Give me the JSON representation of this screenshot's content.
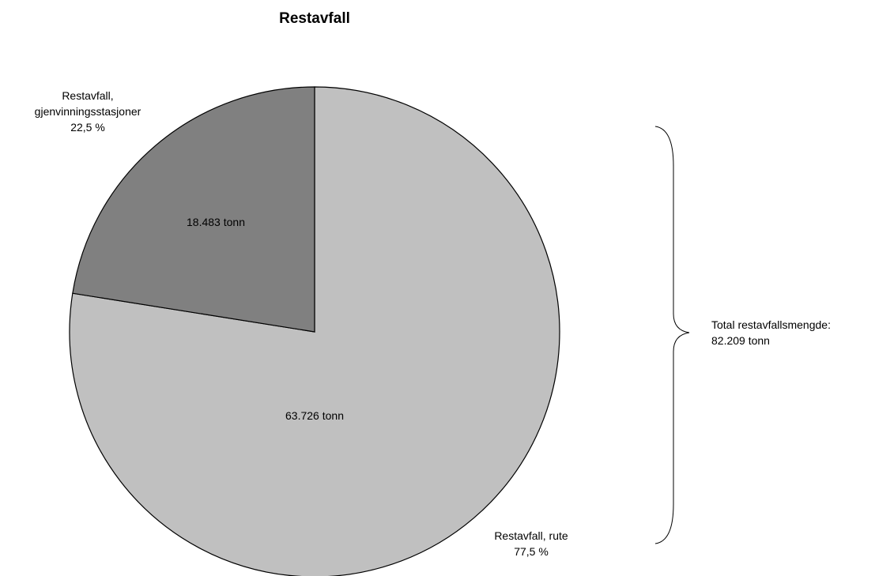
{
  "chart_data": {
    "type": "pie",
    "title": "Restavfall",
    "start_angle_deg": 0,
    "direction": "clockwise",
    "slices": [
      {
        "name": "Restavfall, rute",
        "value": 63726,
        "value_label": "63.726 tonn",
        "percent_label": "77,5 %",
        "color": "#c0c0c0"
      },
      {
        "name_lines": [
          "Restavfall,",
          "gjenvinningsstasjoner"
        ],
        "value": 18483,
        "value_label": "18.483 tonn",
        "percent_label": "22,5 %",
        "color": "#808080"
      }
    ],
    "annotation": {
      "line1": "Total restavfallsmengde:",
      "line2": "82.209 tonn"
    }
  }
}
